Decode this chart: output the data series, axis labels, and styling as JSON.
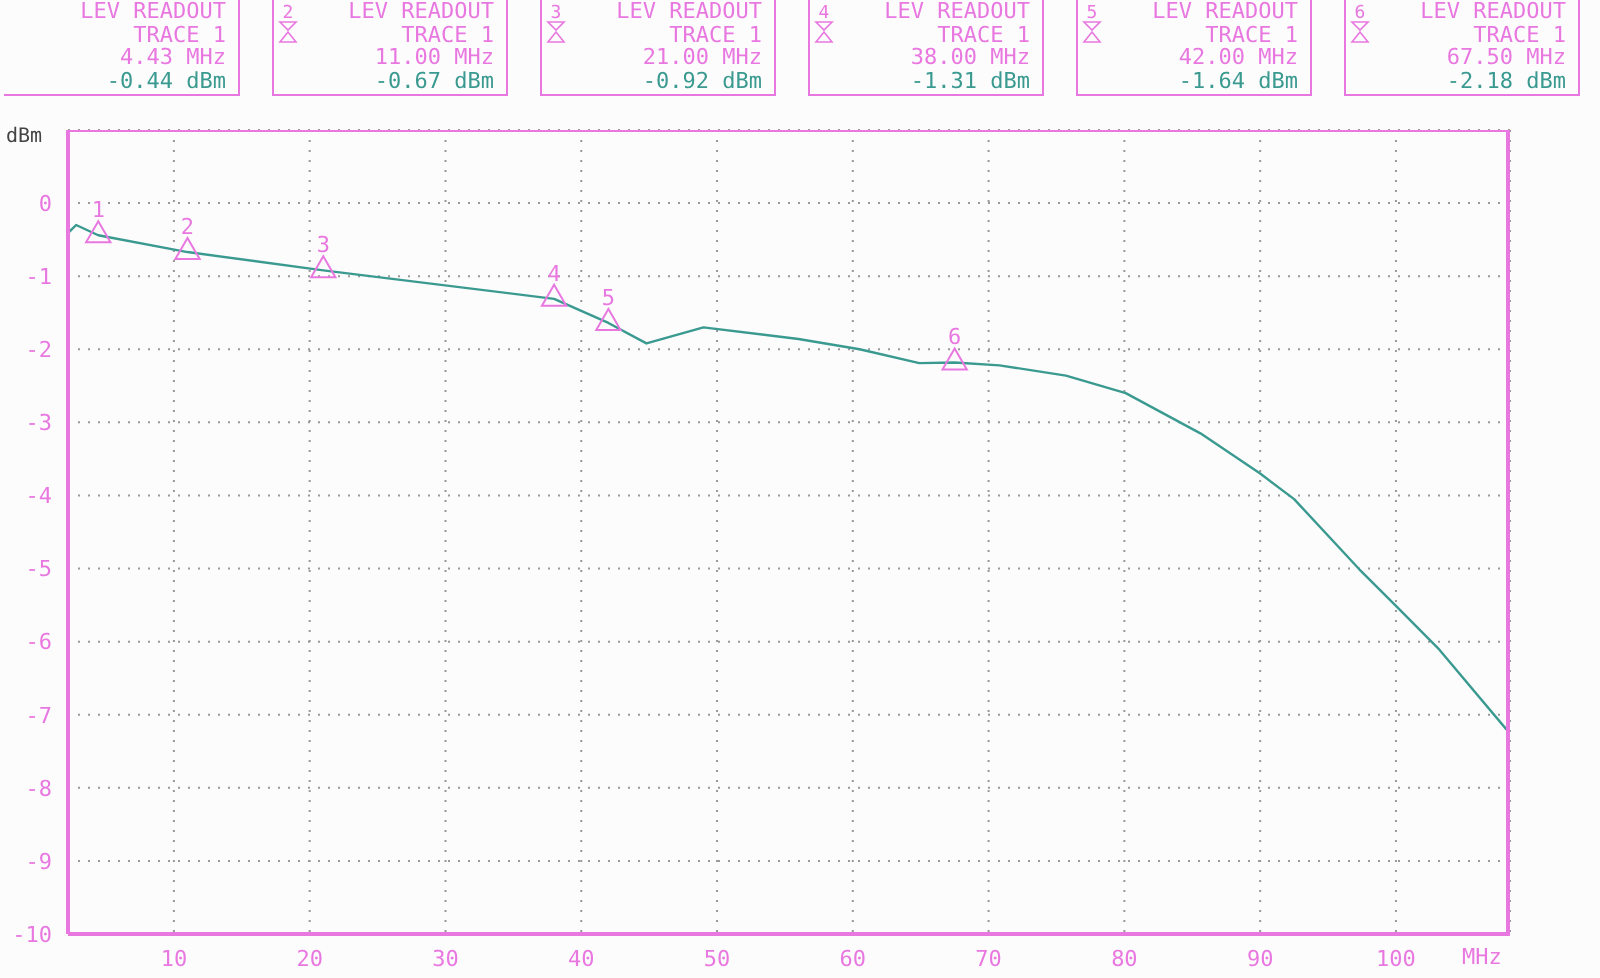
{
  "chart_data": {
    "type": "line",
    "ylabel": "dBm",
    "xlabel": "MHz",
    "xlim": [
      2.2,
      108.4
    ],
    "xticks": [
      10,
      20,
      30,
      40,
      50,
      60,
      70,
      80,
      90,
      100
    ],
    "ylim": [
      -10,
      1
    ],
    "yticks": [
      0,
      -1,
      -2,
      -3,
      -4,
      -5,
      -6,
      -7,
      -8,
      -9,
      -10
    ],
    "grid": true,
    "line_style": "solid",
    "series": [
      {
        "color": "#3a9a90",
        "marker": "none",
        "x": [
          2.2,
          2.8,
          4.43,
          11,
          21,
          38,
          42,
          44.8,
          49,
          56,
          60.5,
          64.9,
          67.5,
          70.8,
          75.7,
          80.1,
          85.6,
          90,
          92.5,
          97.3,
          100,
          103.2,
          108.4
        ],
        "values": [
          -0.41,
          -0.3,
          -0.44,
          -0.67,
          -0.92,
          -1.31,
          -1.64,
          -1.92,
          -1.7,
          -1.86,
          -2.0,
          -2.19,
          -2.18,
          -2.22,
          -2.36,
          -2.6,
          -3.15,
          -3.7,
          -4.05,
          -5.01,
          -5.51,
          -6.11,
          -7.26
        ]
      },
      {
        "type": "scatter",
        "color": "#e878e0",
        "marker": "triangle",
        "x": [
          4.43,
          11,
          21,
          38,
          42,
          67.5
        ],
        "values": [
          -0.44,
          -0.67,
          -0.92,
          -1.31,
          -1.64,
          -2.18
        ]
      }
    ],
    "annotations": [
      {
        "text": "1",
        "x": 4.43,
        "y": -0.44
      },
      {
        "text": "2",
        "x": 11,
        "y": -0.67
      },
      {
        "text": "3",
        "x": 21,
        "y": -0.92
      },
      {
        "text": "4",
        "x": 38,
        "y": -1.31
      },
      {
        "text": "5",
        "x": 42,
        "y": -1.64
      },
      {
        "text": "6",
        "x": 67.5,
        "y": -2.18
      },
      "LEV READOUT\nTRACE 1\n4.43 MHz\n-0.44 dBm",
      "LEV READOUT\nTRACE 1\n11.00 MHz\n-0.67 dBm",
      "LEV READOUT\nTRACE 1\n21.00 MHz\n-0.92 dBm",
      "LEV READOUT\nTRACE 1\n38.00 MHz\n-1.31 dBm",
      "LEV READOUT\nTRACE 1\n42.00 MHz\n-1.64 dBm",
      "LEV READOUT\nTRACE 1\n67.50 MHz\n-2.18 dBm"
    ]
  }
}
